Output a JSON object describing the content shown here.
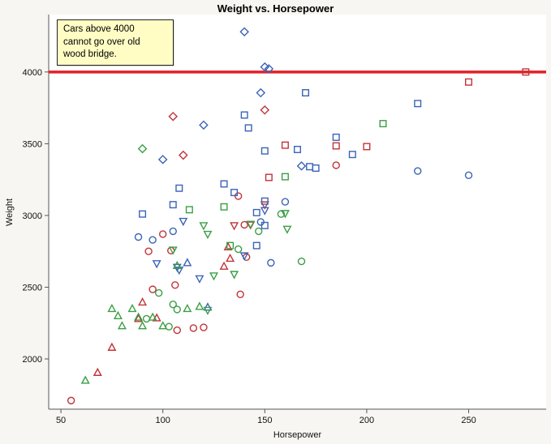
{
  "annotation": {
    "text": "Cars above 4000\ncannot go over old\nwood bridge.",
    "bg": "#fffdc4"
  },
  "chart_data": {
    "type": "scatter",
    "title": "Weight vs. Horsepower",
    "xlabel": "Horsepower",
    "ylabel": "Weight",
    "xlim": [
      44,
      288
    ],
    "ylim": [
      1650,
      4400
    ],
    "x_ticks": [
      50,
      100,
      150,
      200,
      250
    ],
    "y_ticks": [
      2000,
      2500,
      3000,
      3500,
      4000
    ],
    "grid": false,
    "legend": "none",
    "reference_line": {
      "y": 4000,
      "color": "#e02128"
    },
    "palette": {
      "red": "#c23238",
      "blue": "#3a63b8",
      "green": "#3a9e44"
    },
    "plot_bg": "#ffffff",
    "points_format": [
      "horsepower",
      "weight",
      "color",
      "shape"
    ],
    "points": [
      [
        278,
        4000,
        "red",
        "square"
      ],
      [
        250,
        3930,
        "red",
        "square"
      ],
      [
        160,
        3490,
        "red",
        "square"
      ],
      [
        185,
        3485,
        "red",
        "square"
      ],
      [
        200,
        3480,
        "red",
        "square"
      ],
      [
        152,
        3265,
        "red",
        "square"
      ],
      [
        150,
        3735,
        "red",
        "diamond"
      ],
      [
        105,
        3690,
        "red",
        "diamond"
      ],
      [
        110,
        3420,
        "red",
        "diamond"
      ],
      [
        185,
        3350,
        "red",
        "circle"
      ],
      [
        137,
        3135,
        "red",
        "circle"
      ],
      [
        140,
        2935,
        "red",
        "circle"
      ],
      [
        100,
        2870,
        "red",
        "circle"
      ],
      [
        93,
        2750,
        "red",
        "circle"
      ],
      [
        104,
        2755,
        "red",
        "circle"
      ],
      [
        141,
        2710,
        "red",
        "circle"
      ],
      [
        106,
        2515,
        "red",
        "circle"
      ],
      [
        95,
        2485,
        "red",
        "circle"
      ],
      [
        138,
        2450,
        "red",
        "circle"
      ],
      [
        107,
        2200,
        "red",
        "circle"
      ],
      [
        115,
        2215,
        "red",
        "circle"
      ],
      [
        120,
        2220,
        "red",
        "circle"
      ],
      [
        55,
        1710,
        "red",
        "circle"
      ],
      [
        132,
        2780,
        "red",
        "triangle-up"
      ],
      [
        133,
        2700,
        "red",
        "triangle-up"
      ],
      [
        130,
        2645,
        "red",
        "triangle-up"
      ],
      [
        90,
        2395,
        "red",
        "triangle-up"
      ],
      [
        88,
        2280,
        "red",
        "triangle-up"
      ],
      [
        97,
        2285,
        "red",
        "triangle-up"
      ],
      [
        75,
        2080,
        "red",
        "triangle-up"
      ],
      [
        68,
        1905,
        "red",
        "triangle-up"
      ],
      [
        135,
        2930,
        "red",
        "triangle-down"
      ],
      [
        143,
        2935,
        "red",
        "triangle-down"
      ],
      [
        150,
        3075,
        "red",
        "triangle-down"
      ],
      [
        140,
        4280,
        "blue",
        "diamond"
      ],
      [
        150,
        4035,
        "blue",
        "diamond"
      ],
      [
        152,
        4022,
        "blue",
        "diamond"
      ],
      [
        148,
        3855,
        "blue",
        "diamond"
      ],
      [
        120,
        3630,
        "blue",
        "diamond"
      ],
      [
        100,
        3390,
        "blue",
        "diamond"
      ],
      [
        168,
        3345,
        "blue",
        "diamond"
      ],
      [
        170,
        3855,
        "blue",
        "square"
      ],
      [
        225,
        3780,
        "blue",
        "square"
      ],
      [
        140,
        3700,
        "blue",
        "square"
      ],
      [
        142,
        3610,
        "blue",
        "square"
      ],
      [
        185,
        3545,
        "blue",
        "square"
      ],
      [
        166,
        3460,
        "blue",
        "square"
      ],
      [
        150,
        3450,
        "blue",
        "square"
      ],
      [
        193,
        3425,
        "blue",
        "square"
      ],
      [
        172,
        3340,
        "blue",
        "square"
      ],
      [
        175,
        3330,
        "blue",
        "square"
      ],
      [
        130,
        3220,
        "blue",
        "square"
      ],
      [
        108,
        3190,
        "blue",
        "square"
      ],
      [
        135,
        3160,
        "blue",
        "square"
      ],
      [
        150,
        3100,
        "blue",
        "square"
      ],
      [
        105,
        3075,
        "blue",
        "square"
      ],
      [
        146,
        3020,
        "blue",
        "square"
      ],
      [
        90,
        3010,
        "blue",
        "square"
      ],
      [
        150,
        2930,
        "blue",
        "square"
      ],
      [
        146,
        2790,
        "blue",
        "square"
      ],
      [
        225,
        3310,
        "blue",
        "circle"
      ],
      [
        250,
        3280,
        "blue",
        "circle"
      ],
      [
        105,
        2890,
        "blue",
        "circle"
      ],
      [
        88,
        2850,
        "blue",
        "circle"
      ],
      [
        95,
        2830,
        "blue",
        "circle"
      ],
      [
        148,
        2955,
        "blue",
        "circle"
      ],
      [
        160,
        3095,
        "blue",
        "circle"
      ],
      [
        153,
        2670,
        "blue",
        "circle"
      ],
      [
        110,
        2960,
        "blue",
        "triangle-down"
      ],
      [
        150,
        3035,
        "blue",
        "triangle-down"
      ],
      [
        140,
        2720,
        "blue",
        "triangle-down"
      ],
      [
        97,
        2665,
        "blue",
        "triangle-down"
      ],
      [
        107,
        2640,
        "blue",
        "triangle-down"
      ],
      [
        108,
        2620,
        "blue",
        "triangle-down"
      ],
      [
        118,
        2560,
        "blue",
        "triangle-down"
      ],
      [
        122,
        2360,
        "blue",
        "triangle-up"
      ],
      [
        112,
        2670,
        "blue",
        "triangle-up"
      ],
      [
        90,
        3465,
        "green",
        "diamond"
      ],
      [
        208,
        3640,
        "green",
        "square"
      ],
      [
        160,
        3270,
        "green",
        "square"
      ],
      [
        130,
        3060,
        "green",
        "square"
      ],
      [
        113,
        3040,
        "green",
        "square"
      ],
      [
        133,
        2790,
        "green",
        "square"
      ],
      [
        158,
        3010,
        "green",
        "circle"
      ],
      [
        147,
        2890,
        "green",
        "circle"
      ],
      [
        137,
        2765,
        "green",
        "circle"
      ],
      [
        168,
        2680,
        "green",
        "circle"
      ],
      [
        98,
        2460,
        "green",
        "circle"
      ],
      [
        105,
        2380,
        "green",
        "circle"
      ],
      [
        107,
        2345,
        "green",
        "circle"
      ],
      [
        92,
        2280,
        "green",
        "circle"
      ],
      [
        103,
        2225,
        "green",
        "circle"
      ],
      [
        160,
        3015,
        "green",
        "triangle-down"
      ],
      [
        143,
        2940,
        "green",
        "triangle-down"
      ],
      [
        120,
        2930,
        "green",
        "triangle-down"
      ],
      [
        122,
        2870,
        "green",
        "triangle-down"
      ],
      [
        161,
        2905,
        "green",
        "triangle-down"
      ],
      [
        105,
        2760,
        "green",
        "triangle-down"
      ],
      [
        125,
        2580,
        "green",
        "triangle-down"
      ],
      [
        135,
        2590,
        "green",
        "triangle-down"
      ],
      [
        122,
        2340,
        "green",
        "triangle-down"
      ],
      [
        118,
        2365,
        "green",
        "triangle-up"
      ],
      [
        112,
        2350,
        "green",
        "triangle-up"
      ],
      [
        107,
        2650,
        "green",
        "triangle-up"
      ],
      [
        100,
        2230,
        "green",
        "triangle-up"
      ],
      [
        95,
        2290,
        "green",
        "triangle-up"
      ],
      [
        88,
        2290,
        "green",
        "triangle-up"
      ],
      [
        85,
        2350,
        "green",
        "triangle-up"
      ],
      [
        80,
        2230,
        "green",
        "triangle-up"
      ],
      [
        78,
        2300,
        "green",
        "triangle-up"
      ],
      [
        75,
        2350,
        "green",
        "triangle-up"
      ],
      [
        90,
        2230,
        "green",
        "triangle-up"
      ],
      [
        62,
        1850,
        "green",
        "triangle-up"
      ]
    ]
  }
}
